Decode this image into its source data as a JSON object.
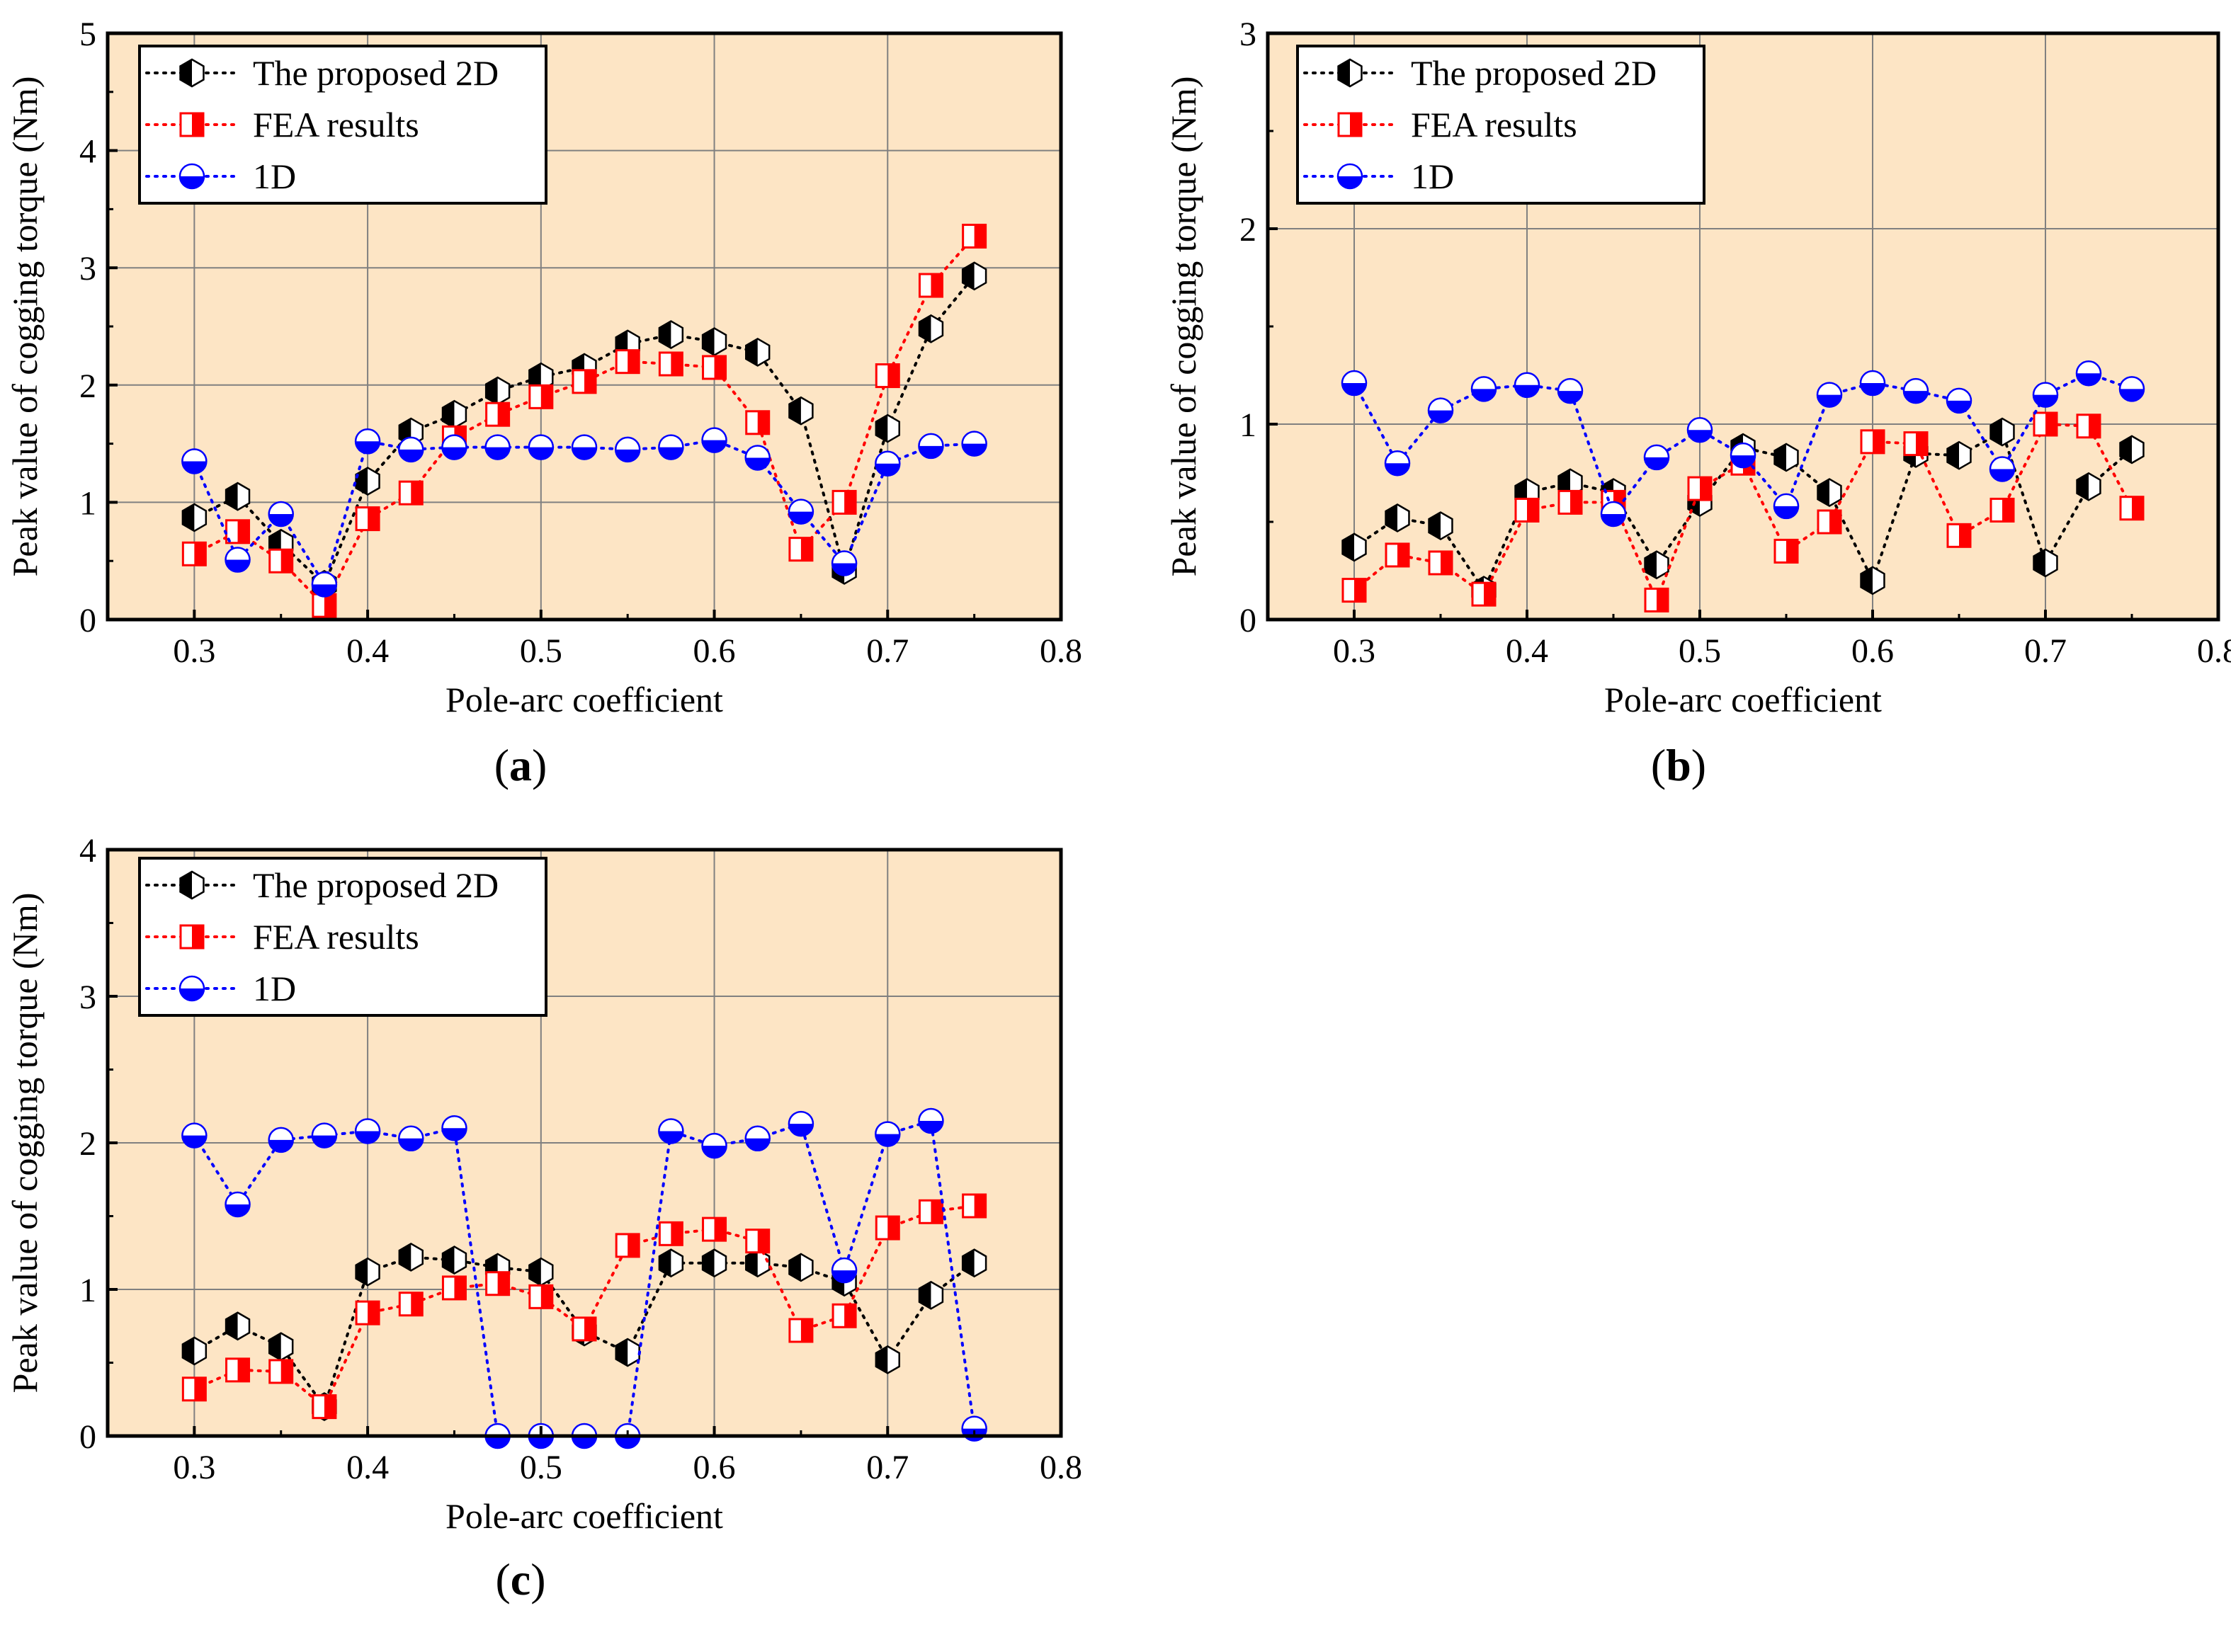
{
  "figure": {
    "background": "#ffffff",
    "plot_background": "#fde5c5",
    "grid_color": "#808080"
  },
  "chart_data": [
    {
      "id": "a",
      "panel_label": "a",
      "type": "line",
      "xlabel": "Pole-arc coefficient",
      "ylabel": "Peak value of cogging torque (Nm)",
      "xlim": [
        0.25,
        0.8
      ],
      "ylim": [
        0,
        5
      ],
      "xticks": [
        0.3,
        0.4,
        0.5,
        0.6,
        0.7,
        0.8
      ],
      "xtick_labels": [
        "0.3",
        "0.4",
        "0.5",
        "0.6",
        "0.7",
        "0.8"
      ],
      "yticks": [
        0,
        1,
        2,
        3,
        4,
        5
      ],
      "ytick_labels": [
        "0",
        "1",
        "2",
        "3",
        "4",
        "5"
      ],
      "grid": true,
      "legend_position": "top-left",
      "x": [
        0.3,
        0.325,
        0.35,
        0.375,
        0.4,
        0.425,
        0.45,
        0.475,
        0.5,
        0.525,
        0.55,
        0.575,
        0.6,
        0.625,
        0.65,
        0.675,
        0.7,
        0.725,
        0.75
      ],
      "series": [
        {
          "name": "The proposed 2D",
          "color": "#000000",
          "marker": "hexagon-half",
          "values": [
            0.87,
            1.05,
            0.65,
            0.3,
            1.18,
            1.6,
            1.75,
            1.95,
            2.07,
            2.15,
            2.35,
            2.43,
            2.37,
            2.28,
            1.78,
            0.42,
            1.63,
            2.48,
            2.93
          ]
        },
        {
          "name": "FEA results",
          "color": "#ff0000",
          "marker": "square-half",
          "values": [
            0.56,
            0.75,
            0.5,
            0.12,
            0.86,
            1.08,
            1.55,
            1.75,
            1.9,
            2.03,
            2.2,
            2.18,
            2.15,
            1.68,
            0.6,
            1.0,
            2.08,
            2.85,
            3.27
          ]
        },
        {
          "name": "1D",
          "color": "#0000ff",
          "marker": "circle-half",
          "values": [
            1.35,
            0.51,
            0.9,
            0.3,
            1.52,
            1.45,
            1.47,
            1.47,
            1.47,
            1.47,
            1.45,
            1.47,
            1.53,
            1.38,
            0.92,
            0.48,
            1.33,
            1.48,
            1.5
          ]
        }
      ]
    },
    {
      "id": "b",
      "panel_label": "b",
      "type": "line",
      "xlabel": "Pole-arc coefficient",
      "ylabel": "Peak value of cogging torque (Nm)",
      "xlim": [
        0.25,
        0.8
      ],
      "ylim": [
        0,
        3
      ],
      "xticks": [
        0.3,
        0.4,
        0.5,
        0.6,
        0.7,
        0.8
      ],
      "xtick_labels": [
        "0.3",
        "0.4",
        "0.5",
        "0.6",
        "0.7",
        "0.8"
      ],
      "yticks": [
        0,
        1,
        2,
        3
      ],
      "ytick_labels": [
        "0",
        "1",
        "2",
        "3"
      ],
      "grid": true,
      "legend_position": "top-left",
      "x": [
        0.3,
        0.325,
        0.35,
        0.375,
        0.4,
        0.425,
        0.45,
        0.475,
        0.5,
        0.525,
        0.55,
        0.575,
        0.6,
        0.625,
        0.65,
        0.675,
        0.7,
        0.725,
        0.75
      ],
      "series": [
        {
          "name": "The proposed 2D",
          "color": "#000000",
          "marker": "hexagon-half",
          "values": [
            0.37,
            0.52,
            0.48,
            0.15,
            0.65,
            0.7,
            0.65,
            0.28,
            0.6,
            0.88,
            0.83,
            0.65,
            0.2,
            0.85,
            0.84,
            0.96,
            0.29,
            0.68,
            0.87
          ]
        },
        {
          "name": "FEA results",
          "color": "#ff0000",
          "marker": "square-half",
          "values": [
            0.15,
            0.33,
            0.29,
            0.13,
            0.56,
            0.6,
            0.6,
            0.1,
            0.67,
            0.8,
            0.35,
            0.5,
            0.91,
            0.9,
            0.43,
            0.56,
            1.0,
            0.99,
            0.57
          ]
        },
        {
          "name": "1D",
          "color": "#0000ff",
          "marker": "circle-half",
          "values": [
            1.21,
            0.8,
            1.07,
            1.18,
            1.2,
            1.17,
            0.54,
            0.83,
            0.97,
            0.84,
            0.58,
            1.15,
            1.21,
            1.17,
            1.12,
            0.77,
            1.15,
            1.26,
            1.18
          ]
        }
      ]
    },
    {
      "id": "c",
      "panel_label": "c",
      "type": "line",
      "xlabel": "Pole-arc coefficient",
      "ylabel": "Peak value of cogging torque (Nm)",
      "xlim": [
        0.25,
        0.8
      ],
      "ylim": [
        0,
        4
      ],
      "xticks": [
        0.3,
        0.4,
        0.5,
        0.6,
        0.7,
        0.8
      ],
      "xtick_labels": [
        "0.3",
        "0.4",
        "0.5",
        "0.6",
        "0.7",
        "0.8"
      ],
      "yticks": [
        0,
        1,
        2,
        3,
        4
      ],
      "ytick_labels": [
        "0",
        "1",
        "2",
        "3",
        "4"
      ],
      "grid": true,
      "legend_position": "top-left",
      "x": [
        0.3,
        0.325,
        0.35,
        0.375,
        0.4,
        0.425,
        0.45,
        0.475,
        0.5,
        0.525,
        0.55,
        0.575,
        0.6,
        0.625,
        0.65,
        0.675,
        0.7,
        0.725,
        0.75
      ],
      "series": [
        {
          "name": "The proposed 2D",
          "color": "#000000",
          "marker": "hexagon-half",
          "values": [
            0.58,
            0.75,
            0.61,
            0.2,
            1.12,
            1.22,
            1.2,
            1.15,
            1.12,
            0.71,
            0.57,
            1.18,
            1.18,
            1.18,
            1.15,
            1.05,
            0.52,
            0.96,
            1.18
          ]
        },
        {
          "name": "FEA results",
          "color": "#ff0000",
          "marker": "square-half",
          "values": [
            0.32,
            0.45,
            0.44,
            0.2,
            0.84,
            0.9,
            1.01,
            1.04,
            0.95,
            0.73,
            1.3,
            1.38,
            1.41,
            1.33,
            0.72,
            0.82,
            1.42,
            1.53,
            1.57
          ]
        },
        {
          "name": "1D",
          "color": "#0000ff",
          "marker": "circle-half",
          "values": [
            2.05,
            1.58,
            2.02,
            2.05,
            2.08,
            2.03,
            2.1,
            0.0,
            0.0,
            0.0,
            0.0,
            2.08,
            1.98,
            2.03,
            2.13,
            1.13,
            2.06,
            2.15,
            0.05
          ]
        }
      ]
    }
  ]
}
